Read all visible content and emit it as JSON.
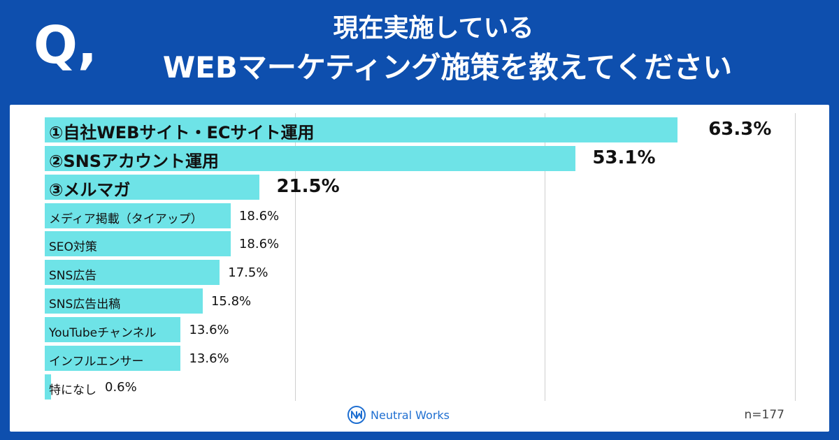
{
  "header": {
    "q_mark": "Q,",
    "title_line1": "現在実施している",
    "title_line2": "WEBマーケティング施策を教えてください"
  },
  "chart_data": {
    "type": "bar",
    "orientation": "horizontal",
    "categories": [
      "①自社WEBサイト・ECサイト運用",
      "②SNSアカウント運用",
      "③メルマガ",
      "メディア掲載（タイアップ）",
      "SEO対策",
      "SNS広告",
      "SNS広告出稿",
      "YouTubeチャンネル",
      "インフルエンサー",
      "特になし"
    ],
    "values": [
      63.3,
      53.1,
      21.5,
      18.6,
      18.6,
      17.5,
      15.8,
      13.6,
      13.6,
      0.6
    ],
    "value_labels": [
      "63.3%",
      "53.1%",
      "21.5%",
      "18.6%",
      "18.6%",
      "17.5%",
      "15.8%",
      "13.6%",
      "13.6%",
      "0.6%"
    ],
    "highlight_top": 3,
    "xlim": [
      0,
      75
    ],
    "grid": true,
    "bar_color": "#6ee3e7"
  },
  "footer": {
    "brand": "Neutral Works",
    "sample_size": "n=177"
  },
  "colors": {
    "background": "#0e4fae",
    "panel": "#ffffff",
    "bar": "#6ee3e7",
    "brand": "#1f6fd1"
  }
}
